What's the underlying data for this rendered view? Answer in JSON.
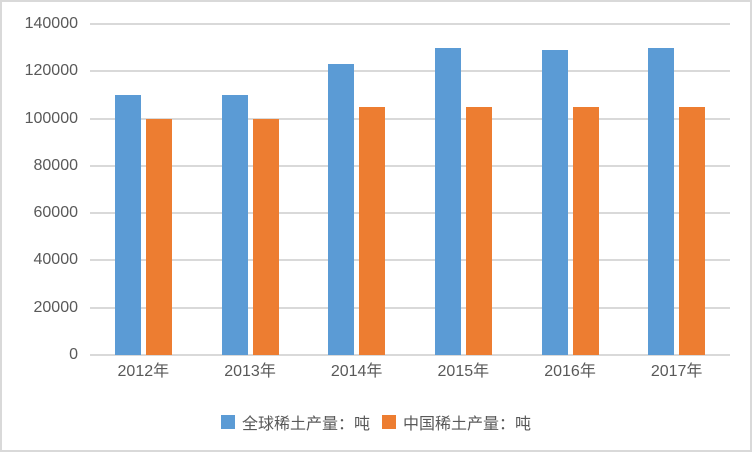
{
  "chart_data": {
    "type": "bar",
    "title": "",
    "categories": [
      "2012年",
      "2013年",
      "2014年",
      "2015年",
      "2016年",
      "2017年"
    ],
    "series": [
      {
        "key": "global",
        "name": "全球稀土产量：吨",
        "color": "#5B9BD5",
        "values": [
          110000,
          110000,
          123000,
          130000,
          129000,
          130000
        ]
      },
      {
        "key": "china",
        "name": "中国稀土产量：吨",
        "color": "#ED7D31",
        "values": [
          100000,
          100000,
          105000,
          105000,
          105000,
          105000
        ]
      }
    ],
    "ylim": [
      0,
      140000
    ],
    "ytick_step": 20000,
    "yticks": [
      0,
      20000,
      40000,
      60000,
      80000,
      100000,
      120000,
      140000
    ],
    "grid": true,
    "legend_position": "bottom"
  },
  "colors": {
    "grid": "#d9d9d9",
    "axis_text": "#595959",
    "background": "#ffffff",
    "border": "#d9d9d9"
  }
}
